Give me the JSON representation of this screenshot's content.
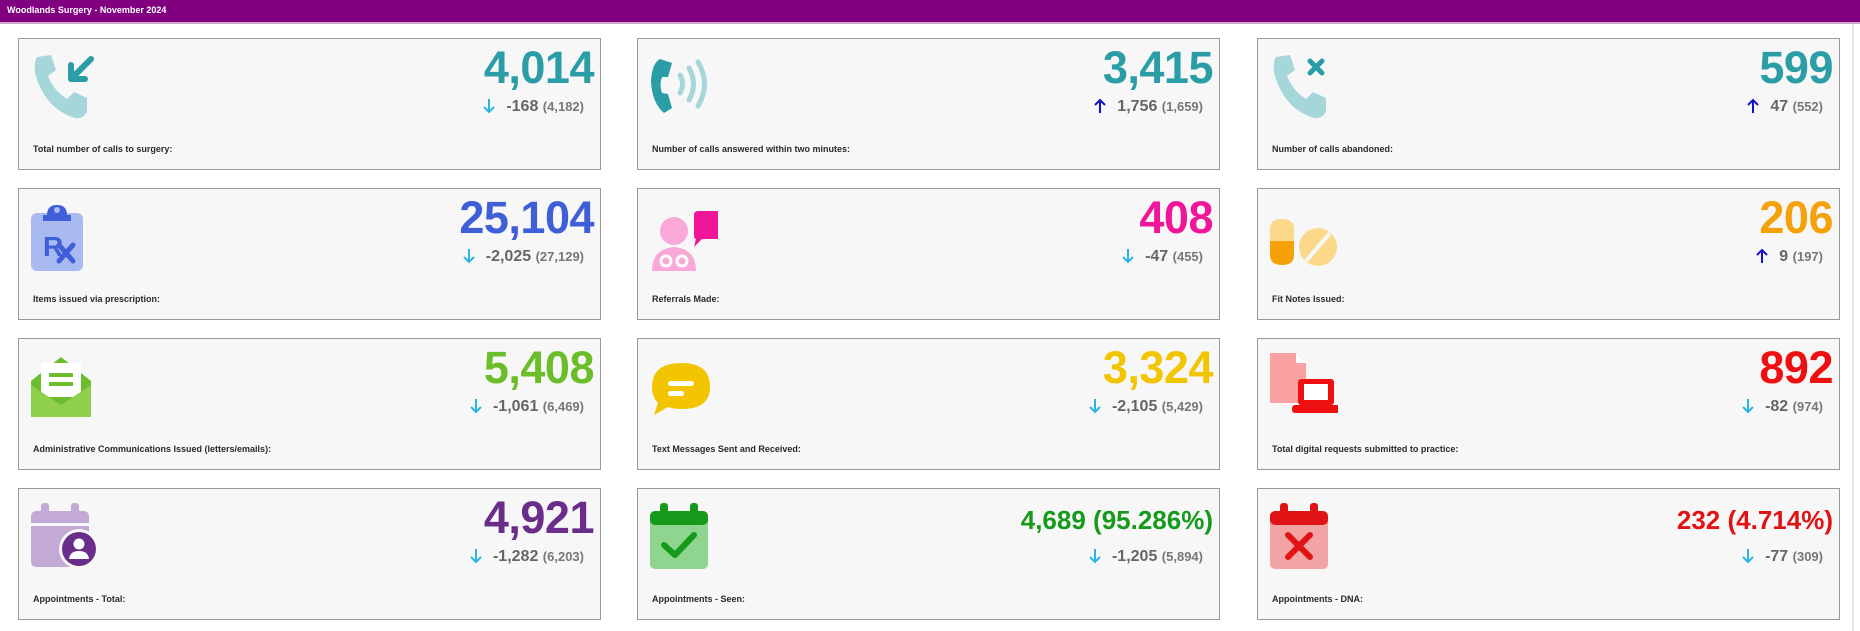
{
  "header": {
    "title": "Woodlands Surgery - November 2024"
  },
  "colors": {
    "banner": "#800080",
    "down_arrow": "#2bb5e3",
    "up_arrow": "#1212c8"
  },
  "cards": [
    {
      "label": "Total number of calls to surgery:",
      "value": "4,014",
      "change": "-168",
      "previous": "(4,182)",
      "trend": "down",
      "color": "#2a9da6",
      "icon": "phone-incoming-icon"
    },
    {
      "label": "Number of calls answered within two minutes:",
      "value": "3,415",
      "change": "1,756",
      "previous": "(1,659)",
      "trend": "up",
      "color": "#2a9da6",
      "icon": "phone-ringing-icon"
    },
    {
      "label": "Number of calls abandoned:",
      "value": "599",
      "change": "47",
      "previous": "(552)",
      "trend": "up",
      "color": "#2a9da6",
      "icon": "phone-missed-icon"
    },
    {
      "label": "Items issued via prescription:",
      "value": "25,104",
      "change": "-2,025",
      "previous": "(27,129)",
      "trend": "down",
      "color": "#3f5fd8",
      "icon": "prescription-clipboard-icon"
    },
    {
      "label": "Referrals Made:",
      "value": "408",
      "change": "-47",
      "previous": "(455)",
      "trend": "down",
      "color": "#f0169a",
      "icon": "doctor-chat-icon"
    },
    {
      "label": "Fit Notes Issued:",
      "value": "206",
      "change": "9",
      "previous": "(197)",
      "trend": "up",
      "color": "#f5a20a",
      "icon": "pills-icon"
    },
    {
      "label": "Administrative Communications Issued (letters/emails):",
      "value": "5,408",
      "change": "-1,061",
      "previous": "(6,469)",
      "trend": "down",
      "color": "#6cbd2a",
      "icon": "envelope-letter-icon"
    },
    {
      "label": "Text Messages Sent and Received:",
      "value": "3,324",
      "change": "-2,105",
      "previous": "(5,429)",
      "trend": "down",
      "color": "#f2c500",
      "icon": "speech-bubble-icon"
    },
    {
      "label": "Total digital requests submitted to practice:",
      "value": "892",
      "change": "-82",
      "previous": "(974)",
      "trend": "down",
      "color": "#ee1010",
      "icon": "laptop-document-icon"
    },
    {
      "label": "Appointments - Total:",
      "value": "4,921",
      "change": "-1,282",
      "previous": "(6,203)",
      "trend": "down",
      "color": "#6a2e8a",
      "icon": "calendar-user-icon"
    },
    {
      "label": "Appointments - Seen:",
      "value": "4,689 (95.286%)",
      "change": "-1,205",
      "previous": "(5,894)",
      "trend": "down",
      "color": "#159a1c",
      "icon": "calendar-check-icon"
    },
    {
      "label": "Appointments - DNA:",
      "value": "232 (4.714%)",
      "change": "-77",
      "previous": "(309)",
      "trend": "down",
      "color": "#e01414",
      "icon": "calendar-cross-icon"
    }
  ]
}
